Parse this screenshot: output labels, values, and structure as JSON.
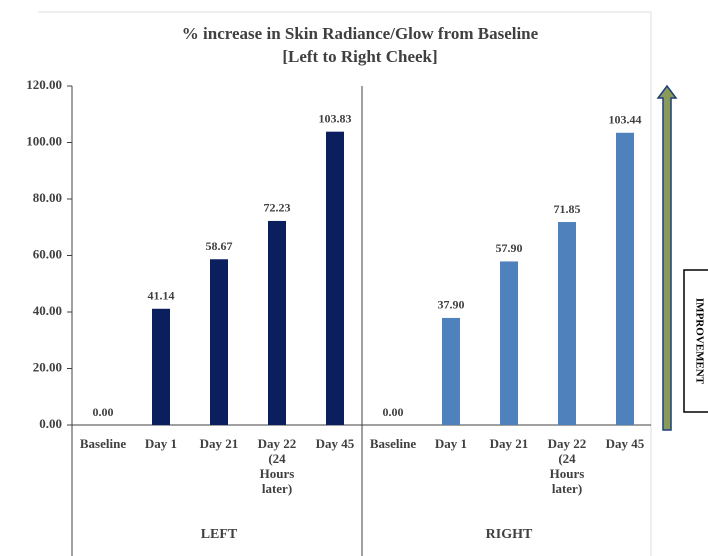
{
  "chart_data": {
    "type": "bar",
    "title": "% increase in Skin Radiance/Glow from Baseline",
    "subtitle": "[Left to Right Cheek]",
    "categories": [
      "Baseline",
      "Day 1",
      "Day 21",
      "Day 22 (24 Hours later)",
      "Day 45"
    ],
    "series": [
      {
        "name": "LEFT",
        "color": "#0b1f5e",
        "values": [
          0,
          41.14,
          58.67,
          72.23,
          103.83
        ],
        "value_labels": [
          "0.00",
          "41.14",
          "58.67",
          "72.23",
          "103.83"
        ]
      },
      {
        "name": "RIGHT",
        "color": "#4f81bd",
        "values": [
          0,
          37.9,
          57.9,
          71.85,
          103.44
        ],
        "value_labels": [
          "0.00",
          "37.90",
          "57.90",
          "71.85",
          "103.44"
        ]
      }
    ],
    "ylim": [
      0,
      120
    ],
    "yticks": [
      {
        "value": 0,
        "label": "0.00"
      },
      {
        "value": 20,
        "label": "20.00"
      },
      {
        "value": 40,
        "label": "40.00"
      },
      {
        "value": 60,
        "label": "60.00"
      },
      {
        "value": 80,
        "label": "80.00"
      },
      {
        "value": 100,
        "label": "100.00"
      },
      {
        "value": 120,
        "label": "120.00"
      }
    ],
    "annotation": "IMPROVEMENT"
  }
}
